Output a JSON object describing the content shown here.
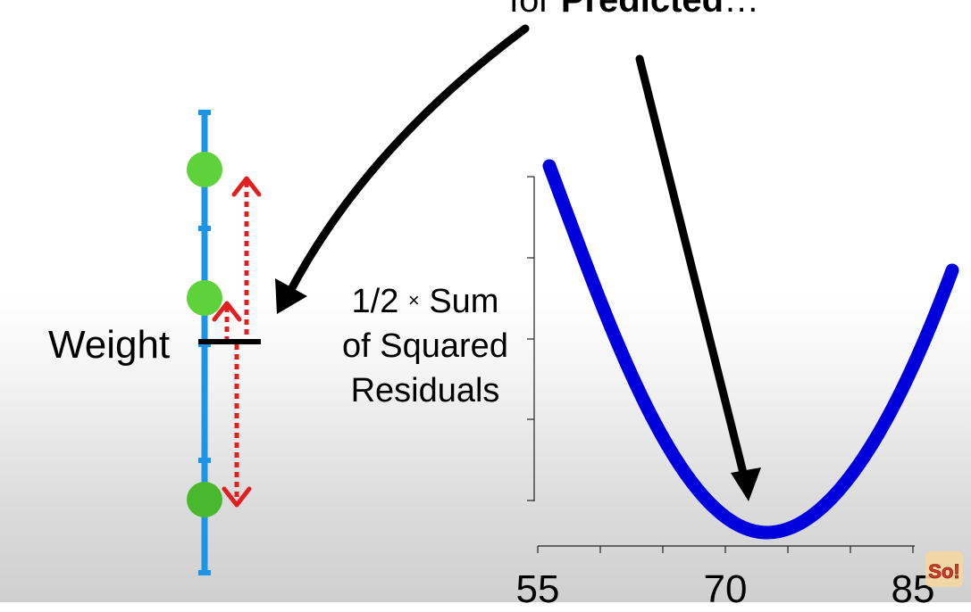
{
  "caption": {
    "prefix": "for",
    "bold": "Predicted",
    "suffix": "…"
  },
  "weight_label": "Weight",
  "y_axis_label": {
    "line1_num": "1/2",
    "line1_times": "×",
    "line1_word": "Sum",
    "line2": "of Squared",
    "line3": "Residuals"
  },
  "x_ticks": [
    "55",
    "70",
    "85"
  ],
  "logo_text": "So!",
  "colors": {
    "data_axis": "#1d94e8",
    "points": "#5dd23a",
    "residual_arrows": "#e02020",
    "prediction_line": "#000000",
    "curve": "#0000dd",
    "annotation_arrows": "#000000"
  },
  "icons": [
    "stat-quest-logo-icon"
  ],
  "chart_data": {
    "type": "line",
    "title": "",
    "xlabel": "",
    "ylabel": "1/2 × Sum of Squared Residuals",
    "x_ticks": [
      55,
      70,
      85
    ],
    "xlim": [
      55,
      85
    ],
    "curve_minimum_x": 72,
    "series": [
      {
        "values_x": [
          55,
          58,
          61,
          64,
          67,
          70,
          72,
          74,
          77,
          80,
          83,
          86
        ],
        "values_y": [
          1.0,
          0.74,
          0.51,
          0.32,
          0.17,
          0.06,
          0.0,
          0.03,
          0.13,
          0.29,
          0.51,
          0.72
        ]
      }
    ]
  }
}
